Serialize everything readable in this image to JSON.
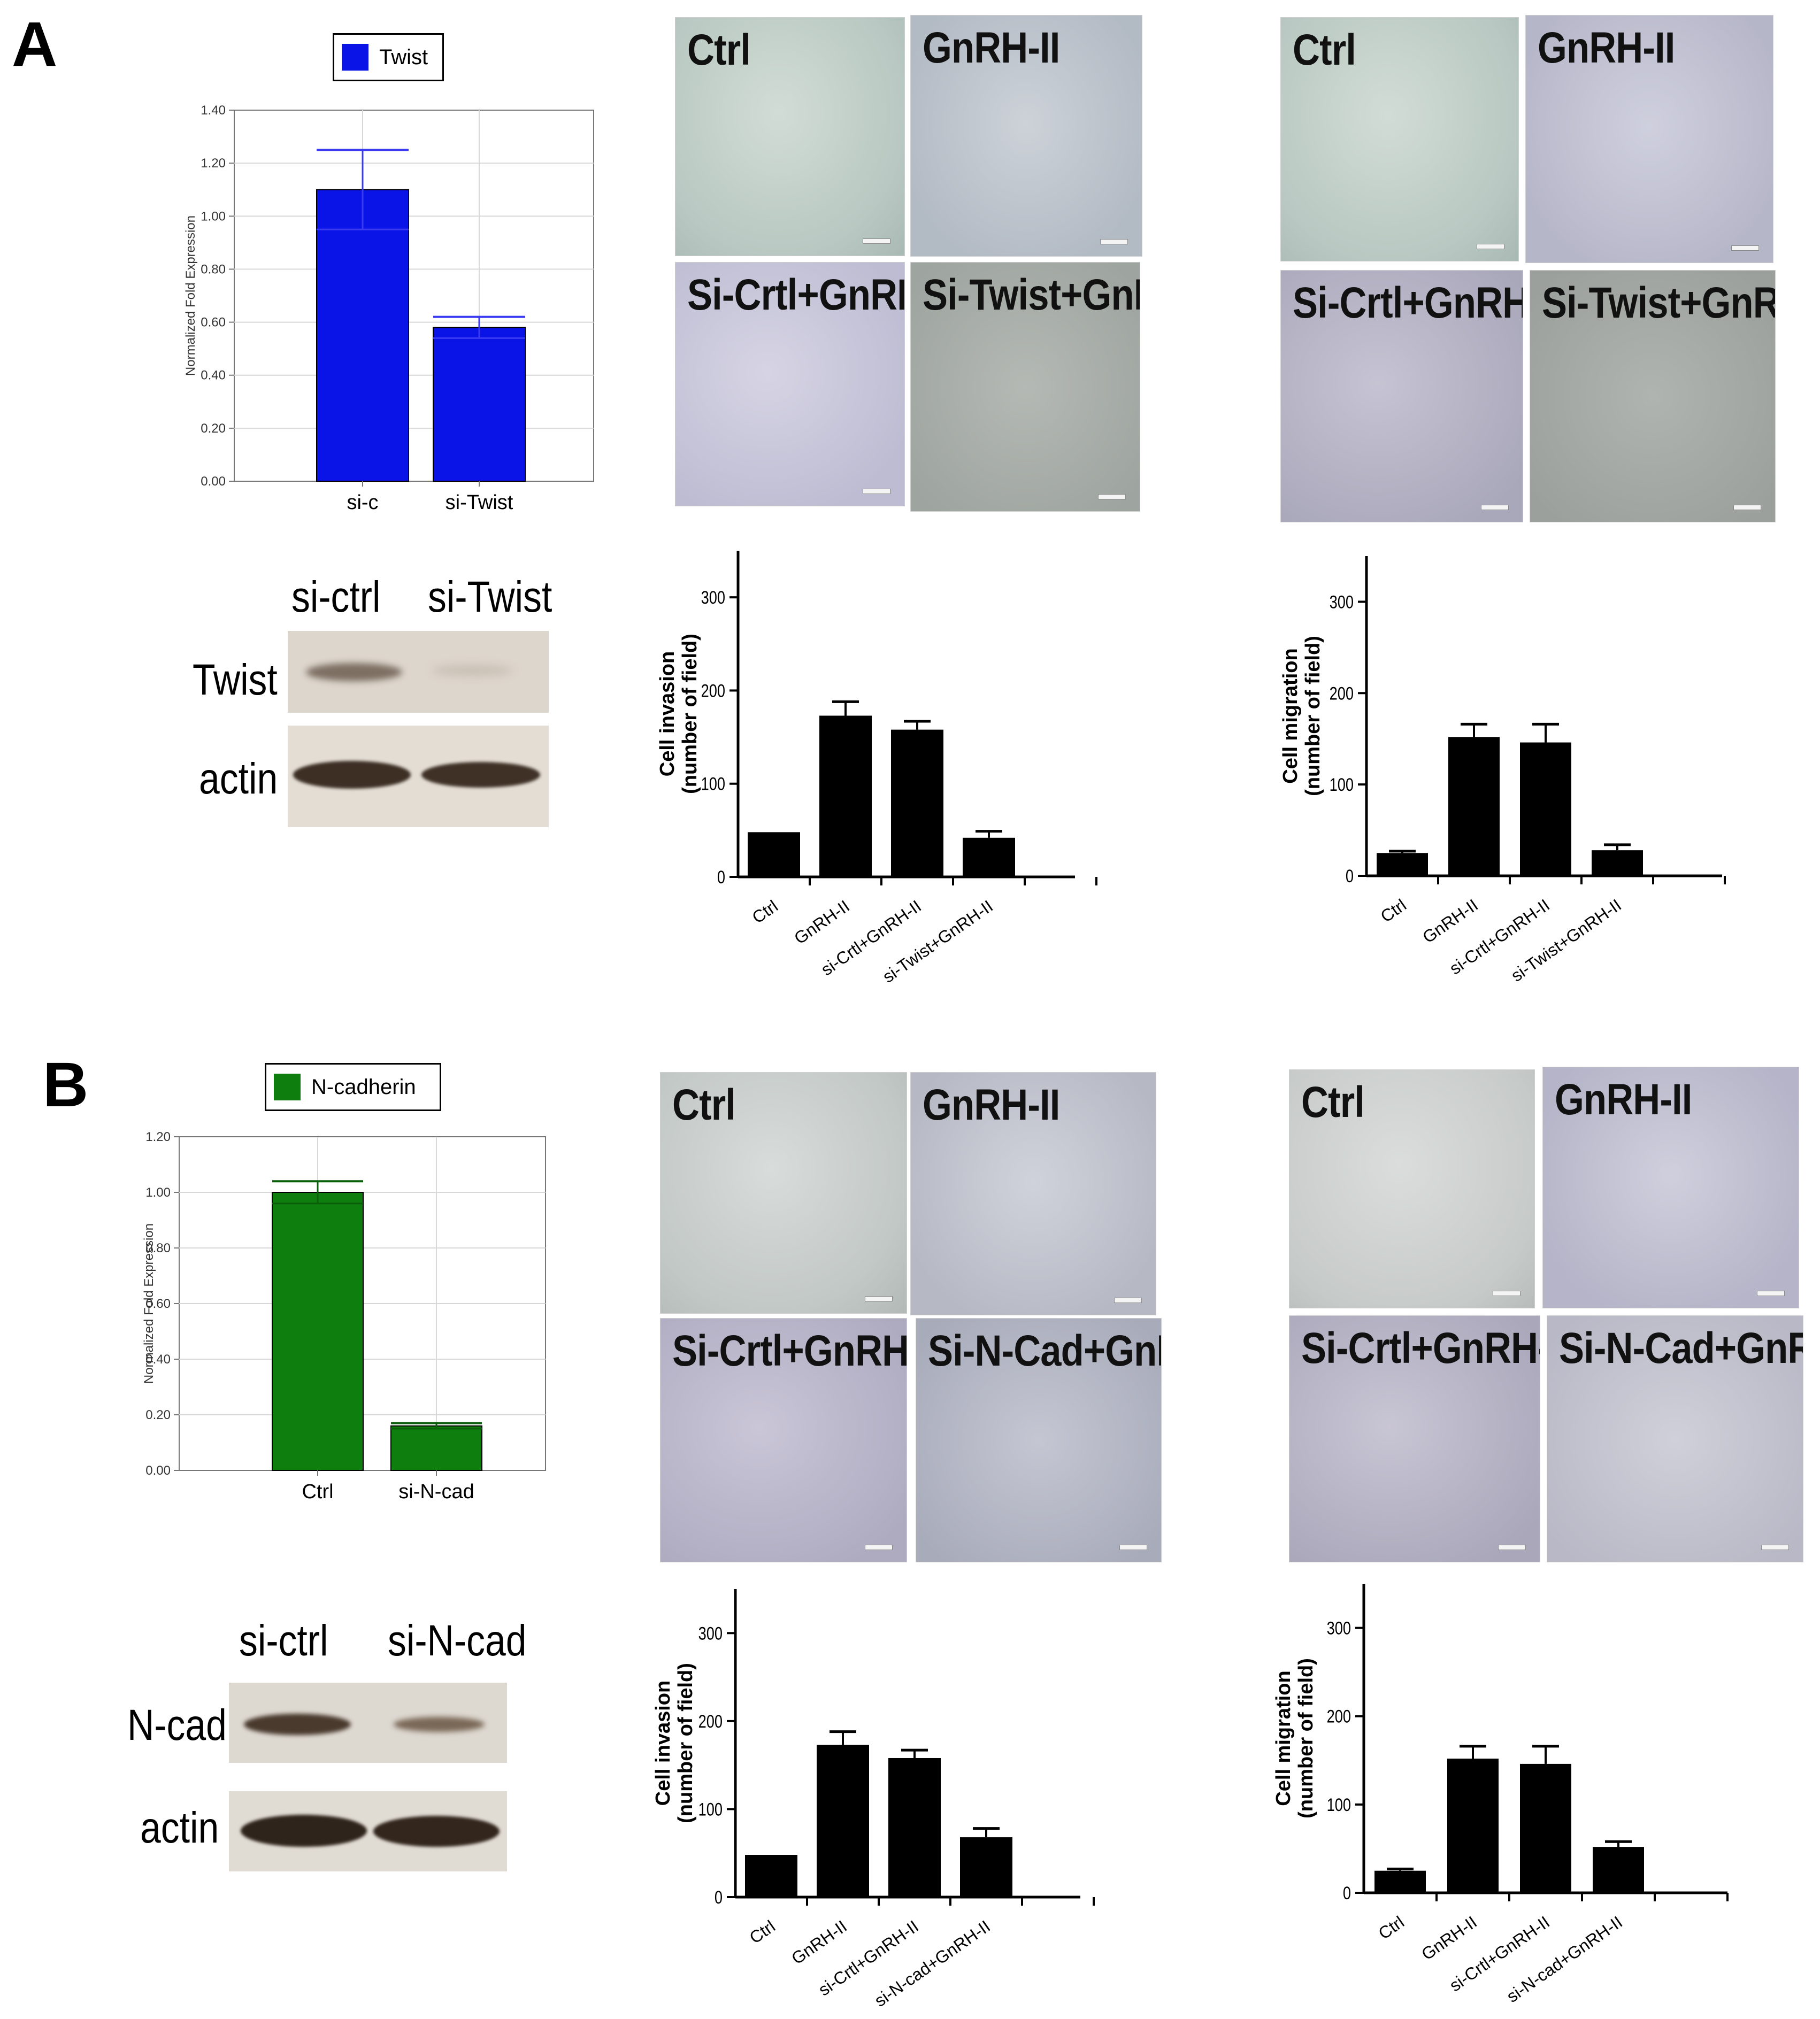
{
  "panels": {
    "A": {
      "letter": "A",
      "legend": "Twist",
      "blot": {
        "col1": "si-ctrl",
        "col2": "si-Twist",
        "row1": "Twist",
        "row2": "actin"
      },
      "invasion_imgs": [
        "Ctrl",
        "GnRH-II",
        "Si-Crtl+GnRH-II",
        "Si-Twist+GnRH-II"
      ],
      "migration_imgs": [
        "Ctrl",
        "GnRH-II",
        "Si-Crtl+GnRH-II",
        "Si-Twist+GnRH-II"
      ]
    },
    "B": {
      "letter": "B",
      "legend": "N-cadherin",
      "blot": {
        "col1": "si-ctrl",
        "col2": "si-N-cad",
        "row1": "N-cad",
        "row2": "actin"
      },
      "invasion_imgs": [
        "Ctrl",
        "GnRH-II",
        "Si-Crtl+GnRH-II",
        "Si-N-Cad+GnRH-II"
      ],
      "migration_imgs": [
        "Ctrl",
        "GnRH-II",
        "Si-Crtl+GnRH-II",
        "Si-N-Cad+GnRH-II"
      ]
    }
  },
  "colors": {
    "twist": "#0a14e6",
    "ncad": "#0e7f0e",
    "bar_black": "#000000"
  },
  "chart_data": [
    {
      "id": "A-qpcr",
      "type": "bar",
      "categories": [
        "si-c",
        "si-Twist"
      ],
      "values": [
        1.1,
        0.58
      ],
      "errors": [
        0.15,
        0.04
      ],
      "ylabel": "Normalized Fold Expression",
      "ylim": [
        0,
        1.4
      ],
      "yticks": [
        "0.00",
        "0.20",
        "0.40",
        "0.60",
        "0.80",
        "1.00",
        "1.20",
        "1.40"
      ],
      "legend": "Twist",
      "color": "#0a14e6",
      "grid": true
    },
    {
      "id": "A-invasion",
      "type": "bar",
      "categories": [
        "Ctrl",
        "GnRH-II",
        "si-Crtl+GnRH-II",
        "si-Twist+GnRH-II"
      ],
      "values": [
        48,
        173,
        158,
        42
      ],
      "errors": [
        0,
        15,
        9,
        7
      ],
      "ylabel": "Cell invasion\n(number of field)",
      "ylim": [
        0,
        350
      ],
      "yticks": [
        "0",
        "100",
        "200",
        "300"
      ]
    },
    {
      "id": "A-migration",
      "type": "bar",
      "categories": [
        "Ctrl",
        "GnRH-II",
        "si-Crtl+GnRH-II",
        "si-Twist+GnRH-II"
      ],
      "values": [
        25,
        152,
        146,
        28
      ],
      "errors": [
        2,
        14,
        20,
        6
      ],
      "ylabel": "Cell migration\n(number of field)",
      "ylim": [
        0,
        350
      ],
      "yticks": [
        "0",
        "100",
        "200",
        "300"
      ]
    },
    {
      "id": "B-qpcr",
      "type": "bar",
      "categories": [
        "Ctrl",
        "si-N-cad"
      ],
      "values": [
        1.0,
        0.16
      ],
      "errors": [
        0.04,
        0.01
      ],
      "ylabel": "Normalized Fold Expression",
      "ylim": [
        0,
        1.2
      ],
      "yticks": [
        "0.00",
        "0.20",
        "0.40",
        "0.60",
        "0.80",
        "1.00",
        "1.20"
      ],
      "legend": "N-cadherin",
      "color": "#0e7f0e",
      "grid": true
    },
    {
      "id": "B-invasion",
      "type": "bar",
      "categories": [
        "Ctrl",
        "GnRH-II",
        "si-Crtl+GnRH-II",
        "si-N-cad+GnRH-II"
      ],
      "values": [
        48,
        173,
        158,
        68
      ],
      "errors": [
        0,
        15,
        9,
        10
      ],
      "ylabel": "Cell invasion\n(number of field)",
      "ylim": [
        0,
        350
      ],
      "yticks": [
        "0",
        "100",
        "200",
        "300"
      ]
    },
    {
      "id": "B-migration",
      "type": "bar",
      "categories": [
        "Ctrl",
        "GnRH-II",
        "si-Crtl+GnRH-II",
        "si-N-cad+GnRH-II"
      ],
      "values": [
        25,
        152,
        146,
        52
      ],
      "errors": [
        2,
        14,
        20,
        6
      ],
      "ylabel": "Cell migration\n(number of field)",
      "ylim": [
        0,
        350
      ],
      "yticks": [
        "0",
        "100",
        "200",
        "300"
      ]
    }
  ]
}
